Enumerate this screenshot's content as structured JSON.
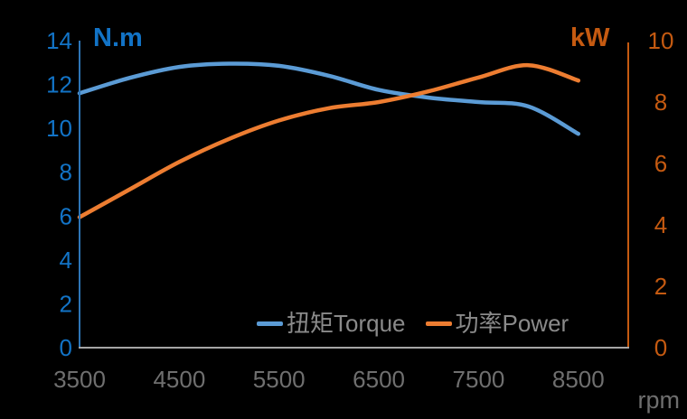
{
  "chart_data": {
    "type": "line",
    "background": "#000000",
    "grid": false,
    "x": [
      3500,
      4000,
      4500,
      5000,
      5500,
      6000,
      6500,
      7000,
      7500,
      8000,
      8500
    ],
    "series": [
      {
        "name": "扭矩Torque",
        "axis": "left",
        "unit": "N.m",
        "color": "#5B9BD5",
        "values": [
          11.6,
          12.3,
          12.8,
          12.95,
          12.85,
          12.4,
          11.75,
          11.4,
          11.2,
          11.0,
          9.75
        ]
      },
      {
        "name": "功率Power",
        "axis": "right",
        "unit": "kW",
        "color": "#ED7D31",
        "values": [
          4.25,
          5.15,
          6.05,
          6.8,
          7.4,
          7.8,
          8.0,
          8.35,
          8.8,
          9.2,
          8.7
        ]
      }
    ],
    "left_axis": {
      "title": "N.m",
      "ticks": [
        0,
        2,
        4,
        6,
        8,
        10,
        12,
        14
      ],
      "range": [
        0,
        14
      ],
      "label_color": "#1273C6",
      "line_color": "#2E75B6"
    },
    "right_axis": {
      "title": "kW",
      "ticks": [
        0,
        2,
        4,
        6,
        8,
        10
      ],
      "range": [
        0,
        10
      ],
      "label_color": "#C55A11",
      "line_color": "#C55A11"
    },
    "x_axis": {
      "title": "rpm",
      "ticks": [
        3500,
        4500,
        5500,
        6500,
        7500,
        8500
      ],
      "range": [
        3500,
        9000
      ],
      "label_color": "#6F6F6F",
      "line_color": "#A6A6A6",
      "unit_color": "#6E6E6E"
    },
    "legend": {
      "position": "inside-bottom-center",
      "text_color": "#8A8A8A"
    }
  }
}
